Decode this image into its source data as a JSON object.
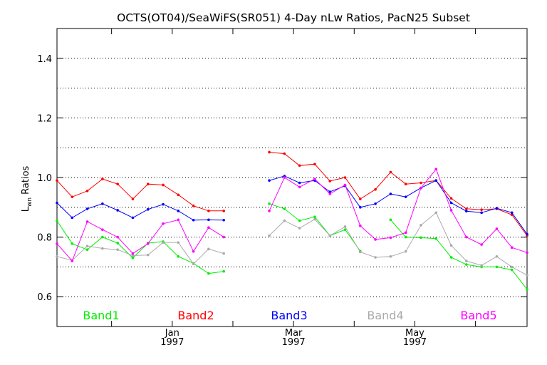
{
  "chart_data": {
    "type": "line",
    "title": "OCTS(OT04)/SeaWiFS(SR051) 4-Day nLw Ratios, PacN25 Subset",
    "ylabel_main": "L",
    "ylabel_sub": "wn",
    "ylabel_rest": " Ratios",
    "xlim": [
      1,
      32
    ],
    "ylim": [
      0.5,
      1.5
    ],
    "y_ticks": [
      0.6,
      0.8,
      1.0,
      1.2,
      1.4
    ],
    "y_tick_labels": [
      "0.6",
      "0.8",
      "1.0",
      "1.2",
      "1.4"
    ],
    "y_gridlines": [
      0.6,
      0.7,
      0.8,
      0.9,
      1.0,
      1.1,
      1.2,
      1.3,
      1.4
    ],
    "x_ticks": [
      4.6,
      8.6,
      12.6,
      16.6,
      20.6,
      24.6,
      28.6
    ],
    "x_date_labels": [
      {
        "x": 8.6,
        "month": "Jan",
        "year": "1997"
      },
      {
        "x": 16.6,
        "month": "Mar",
        "year": "1997"
      },
      {
        "x": 24.6,
        "month": "May",
        "year": "1997"
      }
    ],
    "grid": "horizontal-dotted",
    "legend_position": "bottom",
    "x": [
      1,
      2,
      3,
      4,
      5,
      6,
      7,
      8,
      9,
      10,
      11,
      12,
      13,
      14,
      15,
      16,
      17,
      18,
      19,
      20,
      21,
      22,
      23,
      24,
      25,
      26,
      27,
      28,
      29,
      30,
      31,
      32
    ],
    "series": [
      {
        "name": "Band1",
        "color": "#00ee00",
        "values": [
          0.855,
          0.778,
          0.758,
          0.8,
          0.78,
          0.73,
          0.78,
          0.785,
          0.735,
          0.712,
          0.678,
          0.685,
          null,
          null,
          0.912,
          0.895,
          0.855,
          0.868,
          0.805,
          0.825,
          0.753,
          null,
          0.858,
          0.8,
          0.798,
          0.795,
          0.732,
          0.708,
          0.7,
          0.7,
          0.69,
          0.625
        ]
      },
      {
        "name": "Band2",
        "color": "#ff0000",
        "values": [
          0.99,
          0.935,
          0.955,
          0.995,
          0.978,
          0.928,
          0.978,
          0.975,
          0.942,
          0.905,
          0.888,
          0.888,
          null,
          null,
          1.085,
          1.08,
          1.04,
          1.045,
          0.988,
          1.0,
          0.928,
          0.96,
          1.018,
          0.978,
          0.982,
          0.99,
          0.93,
          0.895,
          0.892,
          0.895,
          0.875,
          0.805
        ]
      },
      {
        "name": "Band3",
        "color": "#0000ff",
        "values": [
          0.915,
          0.865,
          0.895,
          0.912,
          0.89,
          0.865,
          0.893,
          0.91,
          0.888,
          0.857,
          0.858,
          0.857,
          null,
          null,
          0.99,
          1.005,
          0.982,
          0.99,
          0.952,
          0.972,
          0.9,
          0.912,
          0.945,
          0.935,
          0.965,
          0.99,
          0.915,
          0.887,
          0.882,
          0.897,
          0.882,
          0.81
        ]
      },
      {
        "name": "Band4",
        "color": "#aaaaaa",
        "values": [
          0.735,
          0.722,
          0.77,
          0.762,
          0.758,
          0.738,
          0.74,
          0.782,
          0.782,
          0.71,
          0.76,
          0.745,
          null,
          null,
          0.805,
          0.855,
          0.83,
          0.86,
          0.805,
          0.835,
          0.75,
          0.732,
          0.735,
          0.752,
          0.84,
          0.882,
          0.772,
          0.72,
          0.705,
          0.735,
          0.7,
          0.672
        ]
      },
      {
        "name": "Band5",
        "color": "#ff00ff",
        "values": [
          0.778,
          0.72,
          0.852,
          0.825,
          0.8,
          0.745,
          0.778,
          0.845,
          0.858,
          0.752,
          0.832,
          0.8,
          null,
          null,
          0.888,
          1.0,
          0.968,
          0.995,
          0.945,
          0.975,
          0.838,
          0.792,
          0.798,
          0.815,
          0.965,
          1.028,
          0.89,
          0.8,
          0.775,
          0.828,
          0.765,
          0.748
        ]
      }
    ]
  }
}
